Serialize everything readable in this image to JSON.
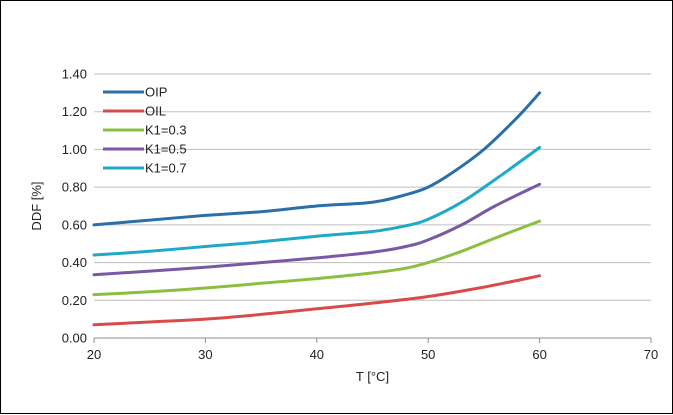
{
  "chart_data": {
    "type": "line",
    "xlabel": "T [°C]",
    "ylabel": "DDF [%]",
    "xlim": [
      20,
      70
    ],
    "ylim": [
      0,
      1.4
    ],
    "x_ticks": [
      20,
      30,
      40,
      50,
      60,
      70
    ],
    "x_tick_labels": [
      "20",
      "30",
      "40",
      "50",
      "60",
      "70"
    ],
    "y_ticks": [
      0,
      0.2,
      0.4,
      0.6,
      0.8,
      1.0,
      1.2,
      1.4
    ],
    "y_tick_labels": [
      "0.00",
      "0.20",
      "0.40",
      "0.60",
      "0.80",
      "1.00",
      "1.20",
      "1.40"
    ],
    "grid": "horizontal",
    "legend_position": "top-left",
    "series": [
      {
        "name": "OIP",
        "color": "#2B6FA8",
        "points": [
          [
            20,
            0.6
          ],
          [
            25,
            0.625
          ],
          [
            30,
            0.65
          ],
          [
            35,
            0.67
          ],
          [
            40,
            0.7
          ],
          [
            45,
            0.72
          ],
          [
            48,
            0.76
          ],
          [
            50,
            0.8
          ],
          [
            52,
            0.87
          ],
          [
            55,
            1.0
          ],
          [
            58,
            1.17
          ],
          [
            60,
            1.3
          ]
        ]
      },
      {
        "name": "OIL",
        "color": "#D94B4B",
        "points": [
          [
            20,
            0.07
          ],
          [
            25,
            0.085
          ],
          [
            30,
            0.1
          ],
          [
            35,
            0.125
          ],
          [
            40,
            0.155
          ],
          [
            45,
            0.185
          ],
          [
            50,
            0.22
          ],
          [
            55,
            0.27
          ],
          [
            60,
            0.33
          ]
        ]
      },
      {
        "name": "K1=0.3",
        "color": "#8CBF3F",
        "points": [
          [
            20,
            0.23
          ],
          [
            25,
            0.245
          ],
          [
            30,
            0.265
          ],
          [
            35,
            0.29
          ],
          [
            40,
            0.315
          ],
          [
            45,
            0.345
          ],
          [
            48,
            0.37
          ],
          [
            50,
            0.4
          ],
          [
            53,
            0.46
          ],
          [
            56,
            0.53
          ],
          [
            60,
            0.62
          ]
        ]
      },
      {
        "name": "K1=0.5",
        "color": "#7B58A6",
        "points": [
          [
            20,
            0.335
          ],
          [
            25,
            0.355
          ],
          [
            30,
            0.375
          ],
          [
            35,
            0.4
          ],
          [
            40,
            0.425
          ],
          [
            45,
            0.455
          ],
          [
            48,
            0.485
          ],
          [
            50,
            0.52
          ],
          [
            53,
            0.6
          ],
          [
            56,
            0.7
          ],
          [
            60,
            0.815
          ]
        ]
      },
      {
        "name": "K1=0.7",
        "color": "#1FA9C9",
        "points": [
          [
            20,
            0.44
          ],
          [
            25,
            0.46
          ],
          [
            30,
            0.485
          ],
          [
            35,
            0.51
          ],
          [
            40,
            0.54
          ],
          [
            45,
            0.565
          ],
          [
            48,
            0.595
          ],
          [
            50,
            0.63
          ],
          [
            53,
            0.72
          ],
          [
            56,
            0.84
          ],
          [
            60,
            1.01
          ]
        ]
      }
    ]
  }
}
